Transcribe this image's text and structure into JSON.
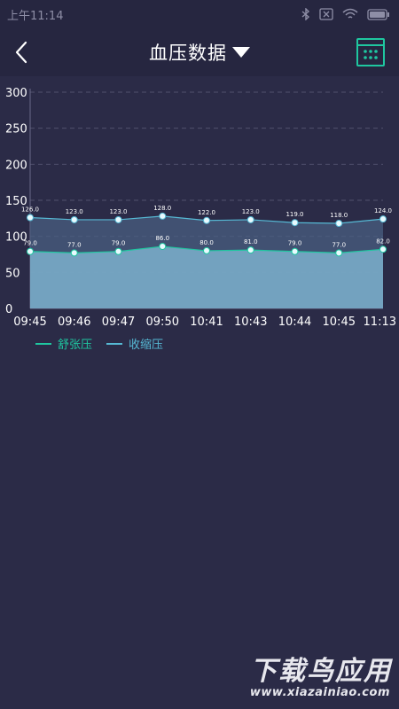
{
  "status_bar": {
    "time": "上午11:14",
    "icons": [
      "bluetooth-icon",
      "no-sim-icon",
      "wifi-icon",
      "battery-icon"
    ]
  },
  "header": {
    "title": "血压数据",
    "icons": {
      "back": "chevron-left-icon",
      "dropdown": "caret-down-icon",
      "calendar": "calendar-icon"
    },
    "accent_color": "#1fc7a0"
  },
  "chart_data": {
    "type": "area",
    "categories": [
      "09:45",
      "09:46",
      "09:47",
      "09:50",
      "10:41",
      "10:43",
      "10:44",
      "10:45",
      "11:13"
    ],
    "series": [
      {
        "name": "收缩压",
        "values": [
          126.0,
          123.0,
          123.0,
          128.0,
          122.0,
          123.0,
          119.0,
          118.0,
          124.0
        ],
        "color": "#56b9d4"
      },
      {
        "name": "舒张压",
        "values": [
          79.0,
          77.0,
          79.0,
          86.0,
          80.0,
          81.0,
          79.0,
          77.0,
          82.0
        ],
        "color": "#1fc7a0"
      }
    ],
    "value_labels": {
      "systolic": [
        "126.0",
        "123.0",
        "123.0",
        "128.0",
        "122.0",
        "123.0",
        "119.0",
        "118.0",
        "124.0"
      ],
      "diastolic": [
        "79.0",
        "77.0",
        "79.0",
        "86.0",
        "80.0",
        "81.0",
        "79.0",
        "77.0",
        "82.0"
      ]
    },
    "y_ticks": [
      "0",
      "50",
      "100",
      "150",
      "200",
      "250",
      "300"
    ],
    "ylim": [
      0,
      300
    ],
    "grid": "dashed-horizontal",
    "legend_position": "bottom-left"
  },
  "legend": {
    "diastolic_label": "舒张压",
    "systolic_label": "收缩压"
  },
  "watermark": {
    "title": "下载鸟应用",
    "url": "www.xiazainiao.com"
  }
}
